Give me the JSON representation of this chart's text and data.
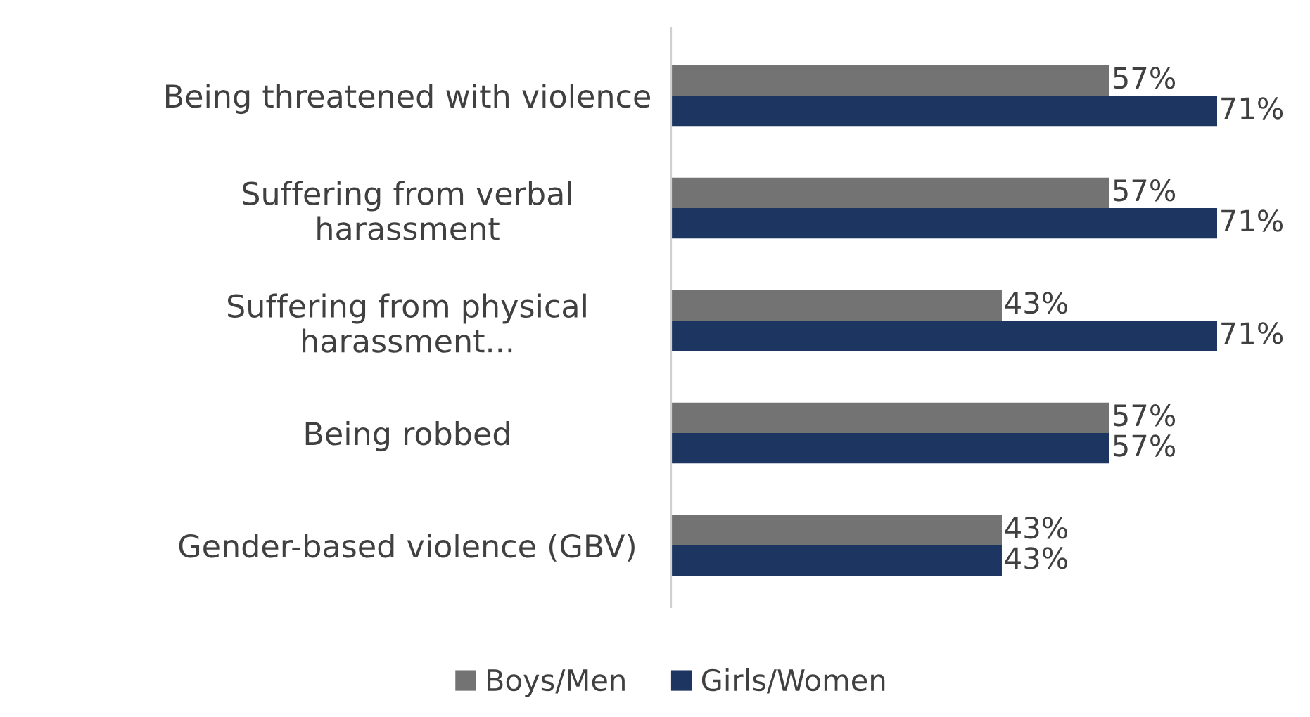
{
  "chart_data": {
    "type": "bar",
    "orientation": "horizontal",
    "categories": [
      "Being threatened with violence",
      "Suffering from verbal\nharassment",
      "Suffering from physical\nharassment...",
      "Being robbed",
      "Gender-based violence (GBV)"
    ],
    "series": [
      {
        "name": "Boys/Men",
        "color": "#737373",
        "values": [
          57,
          57,
          43,
          57,
          43
        ],
        "value_labels": [
          "57%",
          "57%",
          "43%",
          "57%",
          "43%"
        ]
      },
      {
        "name": "Girls/Women",
        "color": "#1c3661",
        "values": [
          71,
          71,
          71,
          57,
          43
        ],
        "value_labels": [
          "71%",
          "71%",
          "71%",
          "57%",
          "43%"
        ]
      }
    ],
    "legend": "bottom",
    "grid": false
  }
}
